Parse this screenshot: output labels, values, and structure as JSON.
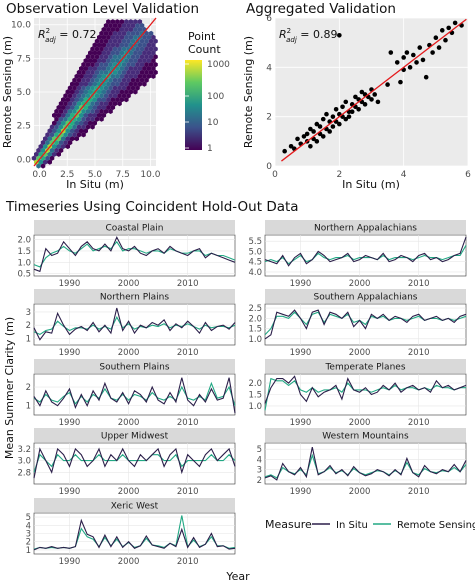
{
  "figure": {
    "panel_a_title": "Observation Level Validation",
    "panel_b_title": "Aggregated Validation",
    "panel_c_title": "Timeseries Using Coincident Hold-Out Data",
    "shared_xlabel": "Year",
    "shared_ylabel": "Mean Summer Clarity (m)"
  },
  "colors": {
    "in_situ": "#2b1f4a",
    "remote_sensing": "#22a884",
    "fit_line": "#e41a1c",
    "panel_bg": "#ebebeb",
    "strip_bg": "#d9d9d9"
  },
  "chart_data": [
    {
      "type": "heatmap",
      "title": "Observation Level Validation",
      "xlabel": "In Situ (m)",
      "ylabel": "Remote Sensing (m)",
      "annotation": {
        "label": "R",
        "sup": "2",
        "sub": "adj",
        "value": " = 0.72"
      },
      "xlim": [
        -0.5,
        10.5
      ],
      "ylim": [
        -0.5,
        10.5
      ],
      "xticks": [
        "0.0",
        "2.5",
        "5.0",
        "7.5",
        "10.0"
      ],
      "yticks": [
        "0.0",
        "2.5",
        "5.0",
        "7.5",
        "10.0"
      ],
      "legend": {
        "title_line1": "Point",
        "title_line2": "Count",
        "labels": [
          "1000",
          "100",
          "10",
          "1"
        ],
        "scale": "log"
      },
      "fit_line": {
        "slope": 1,
        "intercept": 0
      }
    },
    {
      "type": "scatter",
      "title": "Aggregated Validation",
      "xlabel": "In Situ (m)",
      "ylabel": "Remote Sensing (m)",
      "annotation": {
        "label": "R",
        "sup": "2",
        "sub": "adj",
        "value": " = 0.89"
      },
      "xlim": [
        0,
        6
      ],
      "ylim": [
        0,
        6
      ],
      "xticks": [
        "0",
        "2",
        "4",
        "6"
      ],
      "yticks": [
        "0",
        "2",
        "4",
        "6"
      ],
      "fit_line": {
        "slope": 1,
        "intercept": 0
      },
      "points": [
        [
          0.3,
          0.6
        ],
        [
          0.5,
          0.8
        ],
        [
          0.6,
          0.7
        ],
        [
          0.7,
          1.1
        ],
        [
          0.8,
          0.9
        ],
        [
          0.9,
          1.2
        ],
        [
          1.0,
          1.0
        ],
        [
          1.0,
          1.3
        ],
        [
          1.1,
          0.8
        ],
        [
          1.1,
          1.5
        ],
        [
          1.2,
          1.1
        ],
        [
          1.2,
          1.4
        ],
        [
          1.3,
          1.0
        ],
        [
          1.3,
          1.7
        ],
        [
          1.4,
          1.3
        ],
        [
          1.4,
          1.6
        ],
        [
          1.5,
          1.2
        ],
        [
          1.5,
          1.9
        ],
        [
          1.6,
          1.5
        ],
        [
          1.6,
          2.1
        ],
        [
          1.7,
          1.4
        ],
        [
          1.7,
          1.8
        ],
        [
          1.8,
          1.6
        ],
        [
          1.8,
          2.0
        ],
        [
          1.9,
          1.8
        ],
        [
          1.9,
          2.3
        ],
        [
          2.0,
          1.7
        ],
        [
          2.0,
          2.1
        ],
        [
          2.1,
          2.0
        ],
        [
          2.1,
          2.4
        ],
        [
          2.2,
          1.9
        ],
        [
          2.2,
          2.6
        ],
        [
          2.3,
          2.2
        ],
        [
          2.3,
          2.0
        ],
        [
          2.4,
          2.5
        ],
        [
          2.4,
          2.2
        ],
        [
          2.5,
          2.4
        ],
        [
          2.5,
          2.8
        ],
        [
          2.6,
          2.3
        ],
        [
          2.6,
          2.7
        ],
        [
          2.7,
          2.6
        ],
        [
          2.7,
          3.0
        ],
        [
          2.8,
          2.5
        ],
        [
          2.8,
          2.9
        ],
        [
          2.9,
          2.8
        ],
        [
          3.0,
          2.7
        ],
        [
          3.0,
          3.1
        ],
        [
          3.1,
          2.9
        ],
        [
          3.2,
          2.6
        ],
        [
          2.0,
          5.3
        ],
        [
          3.5,
          3.3
        ],
        [
          3.6,
          4.6
        ],
        [
          3.8,
          4.2
        ],
        [
          3.9,
          3.4
        ],
        [
          4.0,
          3.9
        ],
        [
          4.0,
          4.4
        ],
        [
          4.1,
          4.6
        ],
        [
          4.2,
          4.0
        ],
        [
          4.3,
          4.5
        ],
        [
          4.4,
          4.2
        ],
        [
          4.5,
          4.8
        ],
        [
          4.6,
          4.3
        ],
        [
          4.7,
          3.6
        ],
        [
          4.8,
          4.9
        ],
        [
          4.9,
          4.6
        ],
        [
          5.0,
          5.2
        ],
        [
          5.1,
          4.8
        ],
        [
          5.2,
          5.5
        ],
        [
          5.3,
          5.1
        ],
        [
          5.4,
          5.6
        ],
        [
          5.5,
          5.4
        ],
        [
          5.6,
          5.8
        ],
        [
          5.8,
          5.7
        ]
      ]
    },
    {
      "type": "line",
      "title": "Timeseries Using Coincident Hold-Out Data",
      "xlabel": "Year",
      "ylabel": "Mean Summer Clarity (m)",
      "legend": {
        "title": "Measure",
        "entries": [
          "In Situ",
          "Remote Sensing"
        ]
      },
      "xlim": [
        1984,
        2018
      ],
      "xticks": [
        1990,
        2000,
        2010
      ],
      "panels": [
        {
          "name": "Coastal Plain",
          "ylim": [
            0.4,
            2.2
          ],
          "yticks": [
            "0.5",
            "1.0",
            "1.5",
            "2.0"
          ],
          "in_situ": [
            0.7,
            0.6,
            1.6,
            1.3,
            1.4,
            1.9,
            1.6,
            1.3,
            1.7,
            1.9,
            1.6,
            1.5,
            1.8,
            1.5,
            2.1,
            1.6,
            1.5,
            1.7,
            1.4,
            1.3,
            1.5,
            1.6,
            1.4,
            1.7,
            1.5,
            1.4,
            1.3,
            1.5,
            1.6,
            1.2,
            1.4,
            1.3,
            1.2,
            1.1,
            1.0
          ],
          "remote_sensing": [
            0.9,
            0.8,
            1.2,
            1.4,
            1.5,
            1.7,
            1.5,
            1.4,
            1.6,
            1.8,
            1.5,
            1.6,
            1.7,
            1.6,
            1.9,
            1.5,
            1.6,
            1.6,
            1.5,
            1.4,
            1.5,
            1.5,
            1.4,
            1.6,
            1.5,
            1.4,
            1.4,
            1.5,
            1.5,
            1.3,
            1.4,
            1.3,
            1.3,
            1.2,
            1.1
          ]
        },
        {
          "name": "Northern Appalachians",
          "ylim": [
            3.8,
            5.8
          ],
          "yticks": [
            "4.0",
            "4.5",
            "5.0",
            "5.5"
          ],
          "in_situ": [
            4.6,
            4.5,
            4.4,
            4.8,
            4.3,
            4.7,
            4.9,
            4.4,
            4.6,
            5.0,
            4.8,
            4.5,
            4.6,
            4.7,
            4.9,
            4.5,
            4.6,
            4.8,
            4.7,
            4.6,
            4.9,
            4.5,
            4.6,
            4.8,
            4.7,
            4.5,
            4.8,
            4.9,
            4.6,
            4.7,
            4.5,
            4.6,
            4.8,
            4.9,
            5.7
          ],
          "remote_sensing": [
            4.5,
            4.6,
            4.5,
            4.7,
            4.4,
            4.6,
            4.8,
            4.5,
            4.6,
            4.9,
            4.7,
            4.6,
            4.7,
            4.7,
            4.8,
            4.6,
            4.7,
            4.7,
            4.7,
            4.6,
            4.8,
            4.6,
            4.7,
            4.7,
            4.7,
            4.6,
            4.7,
            4.8,
            4.7,
            4.7,
            4.6,
            4.7,
            4.8,
            4.8,
            5.3
          ]
        },
        {
          "name": "Northern Plains",
          "ylim": [
            0.5,
            3.6
          ],
          "yticks": [
            "1",
            "2",
            "3"
          ],
          "in_situ": [
            1.8,
            0.9,
            1.5,
            1.4,
            2.9,
            2.0,
            1.3,
            1.7,
            1.9,
            1.6,
            2.2,
            1.5,
            2.0,
            1.4,
            3.3,
            1.6,
            2.3,
            1.4,
            2.0,
            1.8,
            2.2,
            2.0,
            2.4,
            1.6,
            2.1,
            1.8,
            2.3,
            1.9,
            1.4,
            2.2,
            1.6,
            1.9,
            2.0,
            1.7,
            2.2
          ],
          "remote_sensing": [
            1.5,
            1.3,
            1.6,
            1.7,
            2.3,
            1.9,
            1.6,
            1.8,
            1.8,
            1.7,
            2.0,
            1.7,
            1.9,
            1.7,
            2.6,
            1.8,
            2.1,
            1.7,
            1.9,
            1.8,
            2.0,
            1.9,
            2.1,
            1.8,
            2.0,
            1.9,
            2.1,
            1.9,
            1.7,
            2.0,
            1.8,
            1.9,
            1.9,
            1.8,
            2.0
          ]
        },
        {
          "name": "Southern Appalachians",
          "ylim": [
            0.7,
            2.7
          ],
          "yticks": [
            "1.0",
            "1.5",
            "2.0",
            "2.5"
          ],
          "in_situ": [
            1.0,
            1.2,
            2.3,
            2.2,
            2.1,
            2.4,
            2.0,
            1.5,
            2.3,
            2.4,
            1.7,
            2.3,
            2.2,
            2.0,
            2.3,
            1.6,
            1.9,
            1.5,
            2.2,
            2.0,
            2.2,
            1.9,
            2.1,
            2.0,
            1.8,
            2.1,
            2.2,
            1.9,
            2.0,
            2.1,
            1.9,
            2.0,
            1.8,
            2.1,
            2.2
          ],
          "remote_sensing": [
            1.2,
            1.5,
            2.1,
            2.1,
            2.0,
            2.3,
            2.0,
            1.7,
            2.2,
            2.3,
            1.8,
            2.2,
            2.1,
            2.0,
            2.2,
            1.8,
            1.9,
            1.7,
            2.1,
            2.0,
            2.1,
            1.9,
            2.0,
            2.0,
            1.9,
            2.0,
            2.1,
            1.9,
            2.0,
            2.0,
            1.9,
            2.0,
            1.9,
            2.0,
            2.1
          ]
        },
        {
          "name": "Southern Plains",
          "ylim": [
            0.5,
            2.7
          ],
          "yticks": [
            "1",
            "2"
          ],
          "in_situ": [
            1.5,
            1.0,
            1.8,
            1.2,
            1.0,
            1.4,
            1.9,
            0.9,
            1.6,
            1.0,
            1.8,
            1.3,
            2.2,
            1.4,
            1.2,
            1.7,
            1.1,
            1.8,
            1.6,
            1.2,
            2.0,
            1.3,
            1.1,
            1.7,
            1.2,
            2.5,
            1.3,
            1.0,
            1.6,
            1.2,
            1.9,
            1.3,
            1.4,
            2.5,
            0.6
          ],
          "remote_sensing": [
            1.4,
            1.2,
            1.6,
            1.3,
            1.2,
            1.5,
            1.7,
            1.1,
            1.5,
            1.2,
            1.6,
            1.4,
            1.9,
            1.4,
            1.3,
            1.6,
            1.3,
            1.6,
            1.5,
            1.3,
            1.7,
            1.4,
            1.3,
            1.5,
            1.3,
            2.0,
            1.4,
            1.3,
            1.5,
            1.3,
            2.2,
            1.4,
            1.5,
            2.0,
            1.0
          ]
        },
        {
          "name": "Temperate Planes",
          "ylim": [
            0.6,
            2.4
          ],
          "yticks": [
            "1.0",
            "1.5",
            "2.0"
          ],
          "in_situ": [
            1.1,
            1.8,
            2.2,
            2.2,
            2.0,
            2.3,
            1.5,
            1.2,
            1.8,
            1.4,
            1.6,
            1.7,
            1.9,
            1.3,
            2.2,
            1.7,
            1.6,
            1.8,
            1.5,
            1.6,
            1.9,
            1.7,
            2.0,
            1.6,
            1.8,
            1.9,
            1.7,
            1.8,
            1.6,
            2.1,
            1.8,
            1.9,
            1.7,
            1.8,
            1.9
          ],
          "remote_sensing": [
            0.8,
            2.2,
            2.1,
            2.1,
            1.9,
            2.1,
            1.7,
            1.6,
            1.8,
            1.6,
            1.7,
            1.7,
            1.8,
            1.6,
            2.0,
            1.7,
            1.7,
            1.7,
            1.6,
            1.7,
            1.8,
            1.7,
            1.9,
            1.7,
            1.8,
            1.8,
            1.7,
            1.8,
            1.7,
            1.9,
            1.8,
            1.8,
            1.7,
            1.8,
            1.8
          ]
        },
        {
          "name": "Upper Midwest",
          "ylim": [
            2.6,
            3.3
          ],
          "yticks": [
            "2.8",
            "3.0",
            "3.2"
          ],
          "in_situ": [
            2.7,
            3.2,
            3.0,
            2.8,
            3.2,
            3.1,
            2.9,
            3.2,
            3.1,
            2.9,
            3.0,
            3.2,
            2.9,
            3.1,
            3.0,
            3.2,
            3.0,
            2.9,
            3.1,
            3.0,
            3.1,
            3.2,
            2.9,
            3.1,
            3.2,
            2.8,
            3.1,
            3.0,
            2.9,
            3.1,
            3.2,
            3.0,
            3.1,
            3.2,
            2.9
          ],
          "remote_sensing": [
            2.8,
            3.1,
            3.0,
            2.9,
            3.1,
            3.0,
            3.0,
            3.1,
            3.0,
            3.0,
            3.0,
            3.1,
            3.0,
            3.0,
            3.0,
            3.1,
            3.0,
            3.0,
            3.0,
            3.0,
            3.1,
            3.1,
            3.0,
            3.0,
            3.1,
            2.9,
            3.0,
            3.0,
            3.0,
            3.0,
            3.1,
            3.0,
            3.0,
            3.1,
            3.0
          ]
        },
        {
          "name": "Western Mountains",
          "ylim": [
            1.6,
            5.6
          ],
          "yticks": [
            "2",
            "3",
            "4",
            "5"
          ],
          "in_situ": [
            2.2,
            2.4,
            2.0,
            3.6,
            2.8,
            2.5,
            3.2,
            2.3,
            5.2,
            2.5,
            2.8,
            3.4,
            2.6,
            3.0,
            2.4,
            3.3,
            2.7,
            2.4,
            2.6,
            3.0,
            2.8,
            2.4,
            3.0,
            2.5,
            4.1,
            2.7,
            2.3,
            3.4,
            2.8,
            2.6,
            3.0,
            2.8,
            3.5,
            2.8,
            3.9
          ],
          "remote_sensing": [
            2.3,
            2.5,
            2.2,
            3.2,
            2.8,
            2.6,
            3.0,
            2.5,
            4.4,
            2.6,
            2.8,
            3.2,
            2.7,
            2.9,
            2.5,
            3.1,
            2.7,
            2.5,
            2.7,
            2.9,
            2.8,
            2.5,
            2.9,
            2.6,
            3.7,
            2.7,
            2.5,
            3.1,
            2.8,
            2.7,
            2.9,
            2.8,
            3.2,
            2.8,
            3.5
          ]
        },
        {
          "name": "Xeric West",
          "ylim": [
            0.5,
            5.5
          ],
          "yticks": [
            "1",
            "2",
            "3",
            "4",
            "5"
          ],
          "in_situ": [
            1.0,
            1.3,
            1.2,
            1.4,
            1.2,
            1.3,
            1.2,
            1.4,
            4.6,
            2.9,
            2.6,
            1.3,
            2.8,
            1.4,
            2.6,
            1.3,
            2.0,
            1.2,
            1.5,
            2.7,
            1.6,
            1.4,
            1.2,
            1.8,
            1.4,
            3.5,
            1.3,
            2.5,
            1.3,
            1.7,
            3.0,
            1.4,
            1.5,
            1.1,
            1.2
          ],
          "remote_sensing": [
            1.1,
            1.3,
            1.2,
            1.3,
            1.2,
            1.3,
            1.2,
            1.4,
            3.6,
            2.6,
            2.3,
            1.4,
            2.5,
            1.5,
            2.3,
            1.4,
            1.9,
            1.3,
            1.5,
            2.4,
            1.6,
            1.5,
            1.3,
            1.8,
            1.5,
            5.2,
            1.4,
            2.2,
            1.4,
            1.7,
            2.6,
            1.5,
            1.5,
            1.2,
            1.3
          ]
        }
      ]
    }
  ]
}
